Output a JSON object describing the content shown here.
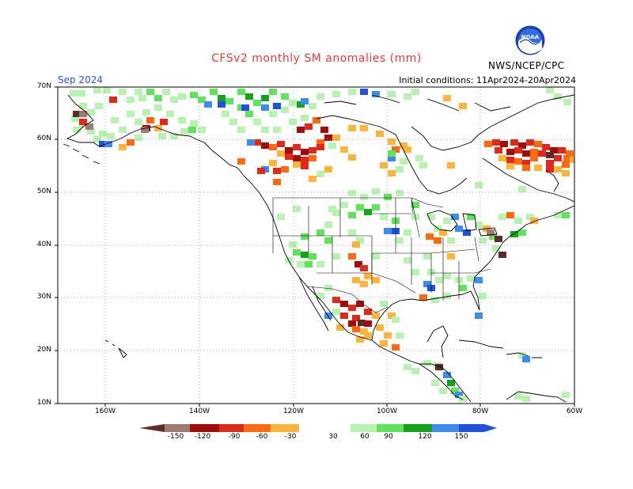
{
  "title": "CFSv2 monthly SM anomalies (mm)",
  "month": "Sep 2024",
  "initial_conditions": "Initial conditions: 11Apr2024-20Apr2024",
  "organization": "NWS/NCEP/CPC",
  "logo_text": "NOAA",
  "axes": {
    "lat_labels": [
      "70N",
      "60N",
      "50N",
      "40N",
      "30N",
      "20N",
      "10N"
    ],
    "lon_labels": [
      "160W",
      "140W",
      "120W",
      "100W",
      "80W",
      "60W"
    ]
  },
  "colorbar": {
    "labels": [
      "-150",
      "-120",
      "-90",
      "-60",
      "-30",
      "30",
      "60",
      "90",
      "120",
      "150"
    ],
    "colors": [
      "#5a2d28",
      "#a07a6e",
      "#a10d0d",
      "#dd2a1a",
      "#ff6a10",
      "#ffb43c",
      "#ffffff",
      "#b7f2b0",
      "#5fe35a",
      "#14a41c",
      "#3c8cf0",
      "#1e52dc"
    ]
  },
  "colors": {
    "title": "#e23a3a",
    "month": "#2c4fe0",
    "coast": "#000000",
    "grid": "#999999"
  }
}
